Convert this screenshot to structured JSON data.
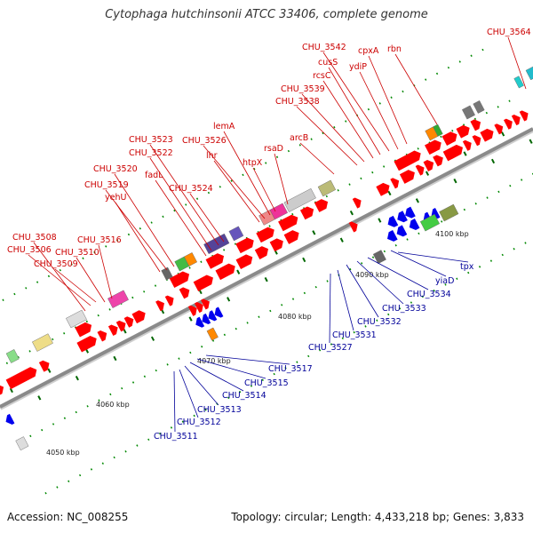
{
  "title": "Cytophaga hutchinsonii ATCC 33406, complete genome",
  "accession": "Accession: NC_008255",
  "summary": "Topology: circular; Length: 4,433,218 bp; Genes: 3,833",
  "colors": {
    "forward": "#ff0000",
    "reverse": "#0000ee",
    "top_label": "#cc0000",
    "bottom_label": "#000099",
    "backbone": "#888888",
    "tick": "#008800"
  },
  "kbp_labels": [
    "4050 kbp",
    "4060 kbp",
    "4070 kbp",
    "4080 kbp",
    "4090 kbp",
    "4100 kbp"
  ],
  "top_labels": [
    "CHU_3508",
    "CHU_3506",
    "CHU_3509",
    "CHU_3510",
    "CHU_3516",
    "yehU",
    "CHU_3519",
    "CHU_3520",
    "fadL",
    "CHU_3522",
    "CHU_3523",
    "CHU_3524",
    "lhr",
    "CHU_3526",
    "lemA",
    "htpX",
    "rsaD",
    "arcB",
    "CHU_3538",
    "CHU_3539",
    "rcsC",
    "cusS",
    "CHU_3542",
    "ydiP",
    "cpxA",
    "rbn",
    "CHU_3564"
  ],
  "bottom_labels": [
    "CHU_3511",
    "CHU_3512",
    "CHU_3513",
    "CHU_3514",
    "CHU_3515",
    "CHU_3517",
    "CHU_3527",
    "CHU_3531",
    "CHU_3532",
    "CHU_3533",
    "CHU_3534",
    "yiaD",
    "tpx"
  ]
}
